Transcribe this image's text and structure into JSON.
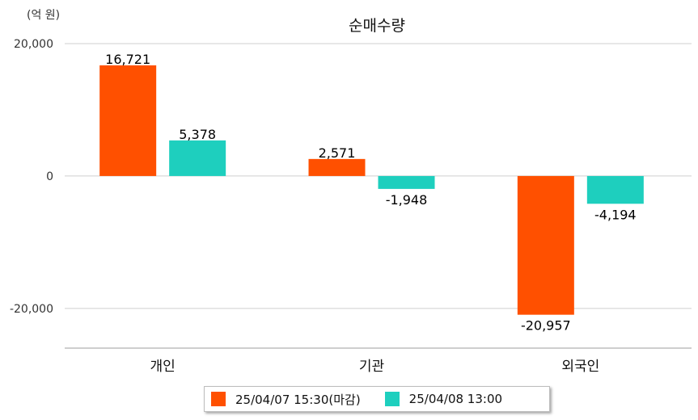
{
  "unit_label": "(억 원)",
  "chart_data": {
    "type": "bar",
    "title": "순매수량",
    "categories": [
      "개인",
      "기관",
      "외국인"
    ],
    "series": [
      {
        "name": "25/04/07 15:30(마감)",
        "color": "#ff5000",
        "values": [
          16721,
          2571,
          -20957
        ]
      },
      {
        "name": "25/04/08 13:00",
        "color": "#1ecfbe",
        "values": [
          5378,
          -1948,
          -4194
        ]
      }
    ],
    "data_labels": [
      [
        "16,721",
        "2,571",
        "-20,957"
      ],
      [
        "5,378",
        "-1,948",
        "-4,194"
      ]
    ],
    "y_ticks": [
      20000,
      0,
      -20000
    ],
    "y_tick_labels": [
      "20,000",
      "0",
      "-20,000"
    ],
    "ylim": [
      -26000,
      20000
    ],
    "grid": true,
    "legend_position": "bottom"
  }
}
